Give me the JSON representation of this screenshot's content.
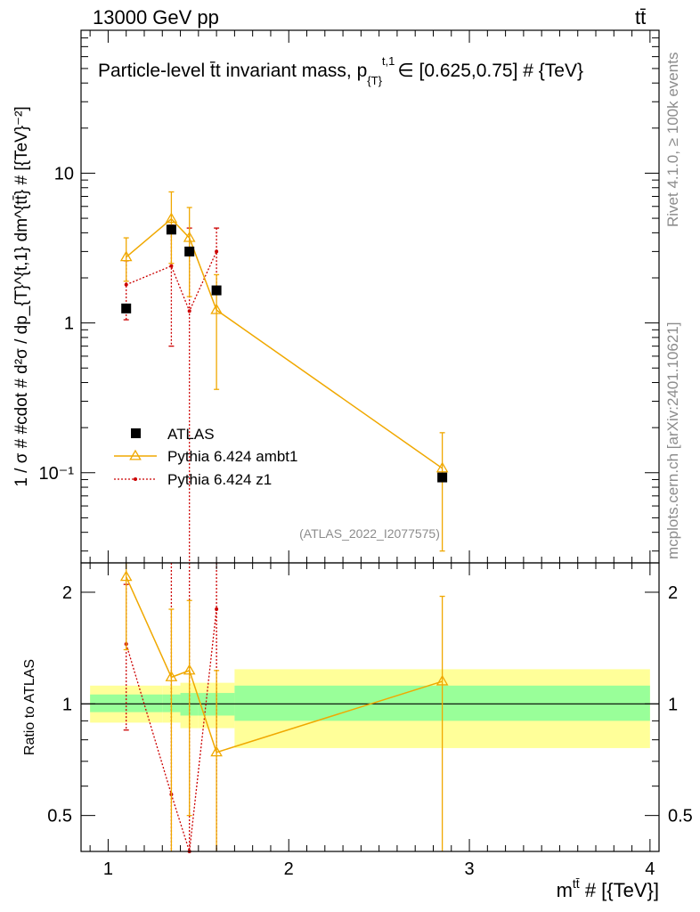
{
  "header": {
    "left": "13000 GeV pp",
    "right": "tt̄"
  },
  "side_text": {
    "rivet": "Rivet 4.1.0, ≥ 100k events",
    "mcplots": "mcplots.cern.ch [arXiv:2401.10621]"
  },
  "chart_data": {
    "type": "scatter",
    "title": "Particle-level t̄t invariant mass, p_{T}^{t,1} ∈ [0.625,0.75] # {TeV}",
    "title_parts": {
      "main": "Particle-level t̄t invariant mass, p",
      "sub": "{T}",
      "sup": "t,1",
      "tail": "∈ [0.625,0.75] # {TeV}"
    },
    "analysis_id": "(ATLAS_2022_I2077575)",
    "xlabel": "m^{tt̄} # [{TeV}]",
    "xlabel_parts": {
      "base": "m",
      "sup": "tt̄",
      "tail": " # [{TeV}]"
    },
    "ylabel": "1 / σ # #cdot # d²σ / dp_{T}^{t,1} dm^{tt̄} # [{TeV}⁻²]",
    "ratio_ylabel": "Ratio to ATLAS",
    "xlim": [
      0.85,
      4.05
    ],
    "ylim": [
      0.025,
      90
    ],
    "yscale": "log",
    "ratio_ylim": [
      0.4,
      2.4
    ],
    "ratio_yscale": "log",
    "x_ticks": [
      "1",
      "2",
      "3",
      "4"
    ],
    "y_ticks": [
      "10⁻¹",
      "1",
      "10"
    ],
    "ratio_y_ticks": [
      "0.5",
      "1",
      "2"
    ],
    "bins": [
      {
        "lo": 0.9,
        "hi": 1.3
      },
      {
        "lo": 1.3,
        "hi": 1.4
      },
      {
        "lo": 1.4,
        "hi": 1.5
      },
      {
        "lo": 1.5,
        "hi": 1.7
      },
      {
        "lo": 1.7,
        "hi": 4.0
      }
    ],
    "series": [
      {
        "name": "ATLAS",
        "style": "data",
        "color": "#000000",
        "x": [
          1.1,
          1.35,
          1.45,
          1.6,
          2.85
        ],
        "y": [
          1.25,
          4.2,
          3.0,
          1.65,
          0.093
        ]
      },
      {
        "name": "Pythia 6.424 ambt1",
        "style": "triangle",
        "color": "#f0a800",
        "x": [
          1.1,
          1.35,
          1.45,
          1.6,
          2.85
        ],
        "y": [
          2.75,
          4.95,
          3.7,
          1.22,
          0.107
        ],
        "y_lo": [
          1.9,
          2.5,
          1.5,
          0.36,
          0.03
        ],
        "y_hi": [
          3.7,
          7.5,
          5.9,
          2.1,
          0.185
        ],
        "ratio": [
          2.2,
          1.18,
          1.23,
          0.74,
          1.15
        ],
        "ratio_lo": [
          1.4,
          0.4,
          0.5,
          0.4,
          0.4
        ],
        "ratio_hi": [
          2.5,
          1.8,
          1.9,
          1.23,
          1.95
        ]
      },
      {
        "name": "Pythia 6.424 z1",
        "style": "dot",
        "color": "#cc0000",
        "x": [
          1.1,
          1.35,
          1.45,
          1.6
        ],
        "y": [
          1.8,
          2.4,
          1.2,
          3.0
        ],
        "y_lo": [
          1.05,
          0.7,
          0.02,
          1.7
        ],
        "y_hi": [
          2.6,
          4.5,
          4.3,
          4.3
        ],
        "ratio": [
          1.45,
          0.57,
          0.4,
          1.8
        ],
        "ratio_lo": [
          0.85,
          0.4,
          0.4,
          0.4
        ],
        "ratio_hi": [
          2.1,
          2.4,
          2.4,
          2.4
        ]
      }
    ],
    "uncertainty_bands": {
      "inner_color": "#99ff99",
      "outer_color": "#ffff99",
      "inner": [
        {
          "lo": 0.95,
          "hi": 1.06
        },
        {
          "lo": 0.95,
          "hi": 1.06
        },
        {
          "lo": 0.93,
          "hi": 1.07
        },
        {
          "lo": 0.93,
          "hi": 1.07
        },
        {
          "lo": 0.9,
          "hi": 1.12
        }
      ],
      "outer": [
        {
          "lo": 0.89,
          "hi": 1.12
        },
        {
          "lo": 0.89,
          "hi": 1.12
        },
        {
          "lo": 0.86,
          "hi": 1.14
        },
        {
          "lo": 0.86,
          "hi": 1.14
        },
        {
          "lo": 0.76,
          "hi": 1.24
        }
      ]
    },
    "legend": {
      "placement": "lower-left",
      "entries": [
        "ATLAS",
        "Pythia 6.424 ambt1",
        "Pythia 6.424 z1"
      ]
    }
  }
}
